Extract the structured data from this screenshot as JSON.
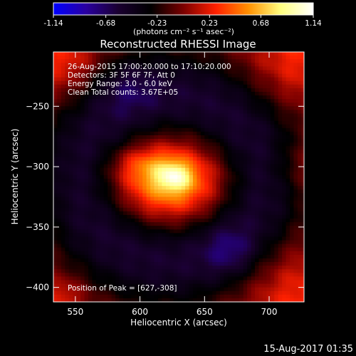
{
  "chart_data": {
    "type": "heatmap",
    "title": "Reconstructed RHESSI Image",
    "colorbar": {
      "ticks": [
        "-1.14",
        "-0.68",
        "-0.23",
        "0.23",
        "0.68",
        "1.14"
      ],
      "range": [
        -1.14,
        1.14
      ],
      "unit_label": "(photons cm⁻² s⁻¹ asec⁻²)",
      "colors": [
        "#0000ff",
        "#2a00a0",
        "#1a0030",
        "#000000",
        "#7a0000",
        "#ff2000",
        "#ff9000",
        "#ffff80",
        "#ffffff"
      ]
    },
    "xlabel": "Heliocentric X (arcsec)",
    "ylabel": "Heliocentric Y (arcsec)",
    "xlim": [
      533,
      727
    ],
    "ylim": [
      -412,
      -205
    ],
    "xticks": [
      550,
      600,
      650,
      700
    ],
    "yticks": [
      -250,
      -300,
      -350,
      -400
    ],
    "info_lines": [
      "26-Aug-2015 17:00:20.000 to 17:10:20.000",
      "Detectors: 3F 5F 6F 7F, Att 0",
      "Energy Range: 3.0 - 6.0 keV",
      "Clean     Total counts: 3.67E+05"
    ],
    "peak_label": "Position of Peak = [627,-308]",
    "peak": {
      "x": 627,
      "y": -308,
      "value": 1.14
    },
    "sources": [
      {
        "x": 622,
        "y": -312,
        "sx": 30,
        "sy": 22,
        "amp": 0.75
      },
      {
        "x": 627,
        "y": -308,
        "sx": 9,
        "sy": 8,
        "amp": 0.4
      },
      {
        "x": 598,
        "y": -298,
        "sx": 16,
        "sy": 10,
        "amp": 0.2
      }
    ],
    "rings": [
      {
        "x": 625,
        "y": -310,
        "r": 68,
        "width": 28,
        "amp": -0.55
      }
    ],
    "corner_lobes": [
      {
        "x": 540,
        "y": -212,
        "s": 20,
        "amp": 0.3
      },
      {
        "x": 722,
        "y": -210,
        "s": 28,
        "amp": 0.3
      },
      {
        "x": 540,
        "y": -408,
        "s": 12,
        "amp": 0.25
      },
      {
        "x": 722,
        "y": -408,
        "s": 30,
        "amp": 0.3
      },
      {
        "x": 725,
        "y": -300,
        "s": 16,
        "amp": 0.2
      }
    ],
    "dark_spots": [
      {
        "x": 670,
        "y": -370,
        "s": 14,
        "amp": -0.25
      },
      {
        "x": 590,
        "y": -232,
        "s": 16,
        "amp": -0.2
      }
    ]
  },
  "footer": {
    "timestamp": "15-Aug-2017 01:35"
  }
}
